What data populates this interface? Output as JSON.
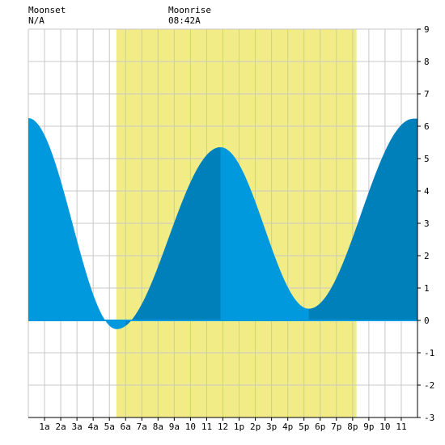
{
  "header": {
    "moonset_label": "Moonset",
    "moonset_time": "N/A",
    "moonrise_label": "Moonrise",
    "moonrise_time": "08:42A"
  },
  "colors": {
    "daylight": "#f2ec86",
    "water_light": "#0099dd",
    "water_dark": "#0080bb",
    "grid": "#c8c8c8",
    "axis": "#000000"
  },
  "chart_data": {
    "type": "area",
    "xlim": [
      0,
      24
    ],
    "ylim": [
      -3,
      9
    ],
    "ytick_labels": [
      "-3",
      "-2",
      "-1",
      "0",
      "1",
      "2",
      "3",
      "4",
      "5",
      "6",
      "7",
      "8",
      "9"
    ],
    "xtick_labels": [
      "1a",
      "2a",
      "3a",
      "4a",
      "5a",
      "6a",
      "7a",
      "8a",
      "9a",
      "10",
      "11",
      "12",
      "1p",
      "2p",
      "3p",
      "4p",
      "5p",
      "6p",
      "7p",
      "8p",
      "9p",
      "10",
      "11"
    ],
    "daylight_span": [
      5.43,
      20.24
    ],
    "tide_extrema": [
      {
        "hour": 0.0,
        "height": 6.25,
        "kind": "high"
      },
      {
        "hour": 5.45,
        "height": -0.27,
        "kind": "low"
      },
      {
        "hour": 11.85,
        "height": 5.35,
        "kind": "high"
      },
      {
        "hour": 17.3,
        "height": 0.36,
        "kind": "low"
      },
      {
        "hour": 23.75,
        "height": 6.23,
        "kind": "high"
      }
    ],
    "dark_shading_spans": [
      [
        6.0,
        11.85
      ],
      [
        17.3,
        24.0
      ]
    ]
  }
}
